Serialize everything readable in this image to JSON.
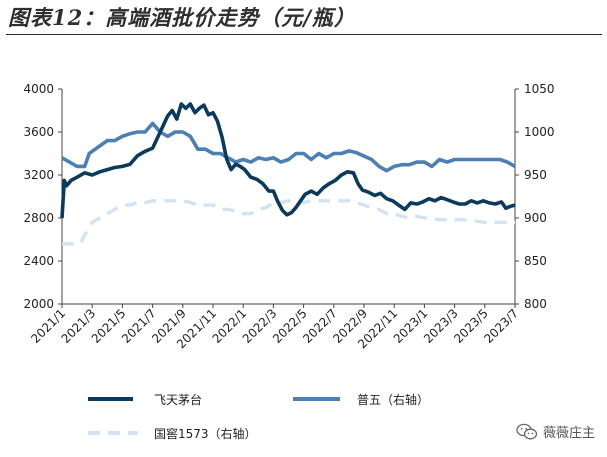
{
  "title": "图表12：高端酒批价走势（元/瓶）",
  "watermark": "薇薇庄主",
  "colors": {
    "feitian": "#0c3a5c",
    "wuliangye": "#4c7fb3",
    "guojiao": "#d3e3f1",
    "axis": "#444444",
    "text": "#222222"
  },
  "chart_data": {
    "type": "line",
    "x_ticks": [
      "2021/1",
      "2021/3",
      "2021/5",
      "2021/7",
      "2021/9",
      "2021/11",
      "2022/1",
      "2022/3",
      "2022/5",
      "2022/7",
      "2022/9",
      "2022/11",
      "2023/1",
      "2023/3",
      "2023/5",
      "2023/7"
    ],
    "y_left": {
      "min": 2000,
      "max": 4000,
      "ticks": [
        2000,
        2400,
        2800,
        3200,
        3600,
        4000
      ]
    },
    "y_right": {
      "min": 800,
      "max": 1050,
      "ticks": [
        800,
        850,
        900,
        950,
        1000,
        1050
      ]
    },
    "legend_position": "bottom",
    "grid": false,
    "series": [
      {
        "name": "飞天茅台",
        "axis": "left",
        "style": "solid",
        "points": [
          [
            0.0,
            2800
          ],
          [
            0.15,
            3150
          ],
          [
            0.3,
            3100
          ],
          [
            0.6,
            3150
          ],
          [
            1.0,
            3180
          ],
          [
            1.5,
            3220
          ],
          [
            2.0,
            3200
          ],
          [
            2.5,
            3230
          ],
          [
            3.0,
            3250
          ],
          [
            3.5,
            3270
          ],
          [
            4.0,
            3280
          ],
          [
            4.5,
            3300
          ],
          [
            5.0,
            3380
          ],
          [
            5.5,
            3420
          ],
          [
            6.0,
            3450
          ],
          [
            6.5,
            3600
          ],
          [
            7.0,
            3750
          ],
          [
            7.3,
            3800
          ],
          [
            7.6,
            3720
          ],
          [
            7.9,
            3860
          ],
          [
            8.2,
            3820
          ],
          [
            8.5,
            3860
          ],
          [
            8.8,
            3780
          ],
          [
            9.1,
            3820
          ],
          [
            9.4,
            3850
          ],
          [
            9.7,
            3760
          ],
          [
            10.0,
            3780
          ],
          [
            10.3,
            3700
          ],
          [
            10.6,
            3550
          ],
          [
            10.9,
            3350
          ],
          [
            11.2,
            3250
          ],
          [
            11.5,
            3300
          ],
          [
            11.8,
            3280
          ],
          [
            12.1,
            3250
          ],
          [
            12.5,
            3180
          ],
          [
            12.9,
            3160
          ],
          [
            13.3,
            3120
          ],
          [
            13.7,
            3050
          ],
          [
            14.0,
            3050
          ],
          [
            14.3,
            2950
          ],
          [
            14.6,
            2870
          ],
          [
            14.9,
            2830
          ],
          [
            15.2,
            2850
          ],
          [
            15.5,
            2900
          ],
          [
            15.8,
            2960
          ],
          [
            16.1,
            3020
          ],
          [
            16.5,
            3050
          ],
          [
            16.9,
            3020
          ],
          [
            17.3,
            3080
          ],
          [
            17.7,
            3120
          ],
          [
            18.1,
            3150
          ],
          [
            18.5,
            3200
          ],
          [
            18.9,
            3230
          ],
          [
            19.3,
            3220
          ],
          [
            19.6,
            3120
          ],
          [
            19.9,
            3060
          ],
          [
            20.3,
            3040
          ],
          [
            20.7,
            3010
          ],
          [
            21.1,
            3030
          ],
          [
            21.5,
            2980
          ],
          [
            21.9,
            2960
          ],
          [
            22.3,
            2920
          ],
          [
            22.7,
            2880
          ],
          [
            23.1,
            2940
          ],
          [
            23.5,
            2930
          ],
          [
            23.9,
            2950
          ],
          [
            24.3,
            2980
          ],
          [
            24.7,
            2960
          ],
          [
            25.1,
            2990
          ],
          [
            25.5,
            2970
          ],
          [
            25.9,
            2950
          ],
          [
            26.3,
            2930
          ],
          [
            26.7,
            2930
          ],
          [
            27.1,
            2960
          ],
          [
            27.5,
            2940
          ],
          [
            27.9,
            2960
          ],
          [
            28.3,
            2940
          ],
          [
            28.7,
            2930
          ],
          [
            29.1,
            2950
          ],
          [
            29.4,
            2890
          ],
          [
            29.7,
            2910
          ],
          [
            30.0,
            2920
          ]
        ]
      },
      {
        "name": "普五（右轴）",
        "axis": "right",
        "style": "solid",
        "points": [
          [
            0.0,
            970
          ],
          [
            0.5,
            965
          ],
          [
            1.0,
            960
          ],
          [
            1.5,
            960
          ],
          [
            1.8,
            975
          ],
          [
            2.2,
            980
          ],
          [
            2.6,
            985
          ],
          [
            3.0,
            990
          ],
          [
            3.5,
            990
          ],
          [
            4.0,
            995
          ],
          [
            4.5,
            998
          ],
          [
            5.0,
            1000
          ],
          [
            5.5,
            1000
          ],
          [
            6.0,
            1010
          ],
          [
            6.5,
            1000
          ],
          [
            7.0,
            995
          ],
          [
            7.5,
            1000
          ],
          [
            8.0,
            1000
          ],
          [
            8.5,
            995
          ],
          [
            9.0,
            980
          ],
          [
            9.5,
            980
          ],
          [
            10.0,
            975
          ],
          [
            10.5,
            975
          ],
          [
            11.0,
            970
          ],
          [
            11.5,
            965
          ],
          [
            12.0,
            968
          ],
          [
            12.5,
            965
          ],
          [
            13.0,
            970
          ],
          [
            13.5,
            968
          ],
          [
            14.0,
            970
          ],
          [
            14.5,
            965
          ],
          [
            15.0,
            968
          ],
          [
            15.5,
            975
          ],
          [
            16.0,
            975
          ],
          [
            16.5,
            968
          ],
          [
            17.0,
            975
          ],
          [
            17.5,
            970
          ],
          [
            18.0,
            975
          ],
          [
            18.5,
            975
          ],
          [
            19.0,
            978
          ],
          [
            19.5,
            976
          ],
          [
            20.0,
            972
          ],
          [
            20.5,
            968
          ],
          [
            21.0,
            960
          ],
          [
            21.5,
            955
          ],
          [
            22.0,
            960
          ],
          [
            22.5,
            962
          ],
          [
            23.0,
            962
          ],
          [
            23.5,
            965
          ],
          [
            24.0,
            965
          ],
          [
            24.5,
            960
          ],
          [
            25.0,
            968
          ],
          [
            25.5,
            965
          ],
          [
            26.0,
            968
          ],
          [
            26.5,
            968
          ],
          [
            27.0,
            968
          ],
          [
            27.5,
            968
          ],
          [
            28.0,
            968
          ],
          [
            28.5,
            968
          ],
          [
            29.0,
            968
          ],
          [
            29.5,
            965
          ],
          [
            30.0,
            960
          ]
        ]
      },
      {
        "name": "国窖1573（右轴）",
        "axis": "right",
        "style": "dashed",
        "points": [
          [
            0.0,
            870
          ],
          [
            0.6,
            870
          ],
          [
            1.2,
            870
          ],
          [
            1.5,
            880
          ],
          [
            2.0,
            895
          ],
          [
            2.5,
            900
          ],
          [
            3.0,
            905
          ],
          [
            3.5,
            910
          ],
          [
            4.0,
            915
          ],
          [
            4.5,
            915
          ],
          [
            5.0,
            918
          ],
          [
            5.5,
            918
          ],
          [
            6.0,
            920
          ],
          [
            6.5,
            920
          ],
          [
            7.0,
            920
          ],
          [
            7.5,
            920
          ],
          [
            8.0,
            920
          ],
          [
            8.5,
            918
          ],
          [
            9.0,
            915
          ],
          [
            9.5,
            915
          ],
          [
            10.0,
            915
          ],
          [
            10.5,
            910
          ],
          [
            11.0,
            910
          ],
          [
            11.5,
            908
          ],
          [
            12.0,
            905
          ],
          [
            12.5,
            905
          ],
          [
            13.0,
            910
          ],
          [
            13.5,
            912
          ],
          [
            14.0,
            918
          ],
          [
            14.5,
            918
          ],
          [
            15.0,
            920
          ],
          [
            15.5,
            918
          ],
          [
            16.0,
            918
          ],
          [
            16.5,
            920
          ],
          [
            17.0,
            920
          ],
          [
            17.5,
            920
          ],
          [
            18.0,
            920
          ],
          [
            18.5,
            920
          ],
          [
            19.0,
            920
          ],
          [
            19.5,
            918
          ],
          [
            20.0,
            915
          ],
          [
            20.5,
            912
          ],
          [
            21.0,
            910
          ],
          [
            21.5,
            905
          ],
          [
            22.0,
            905
          ],
          [
            22.5,
            902
          ],
          [
            23.0,
            900
          ],
          [
            23.5,
            902
          ],
          [
            24.0,
            900
          ],
          [
            24.5,
            900
          ],
          [
            25.0,
            898
          ],
          [
            25.5,
            898
          ],
          [
            26.0,
            898
          ],
          [
            26.5,
            898
          ],
          [
            27.0,
            898
          ],
          [
            27.5,
            896
          ],
          [
            28.0,
            895
          ],
          [
            28.5,
            895
          ],
          [
            29.0,
            895
          ],
          [
            29.5,
            895
          ],
          [
            30.0,
            895
          ]
        ]
      }
    ]
  }
}
